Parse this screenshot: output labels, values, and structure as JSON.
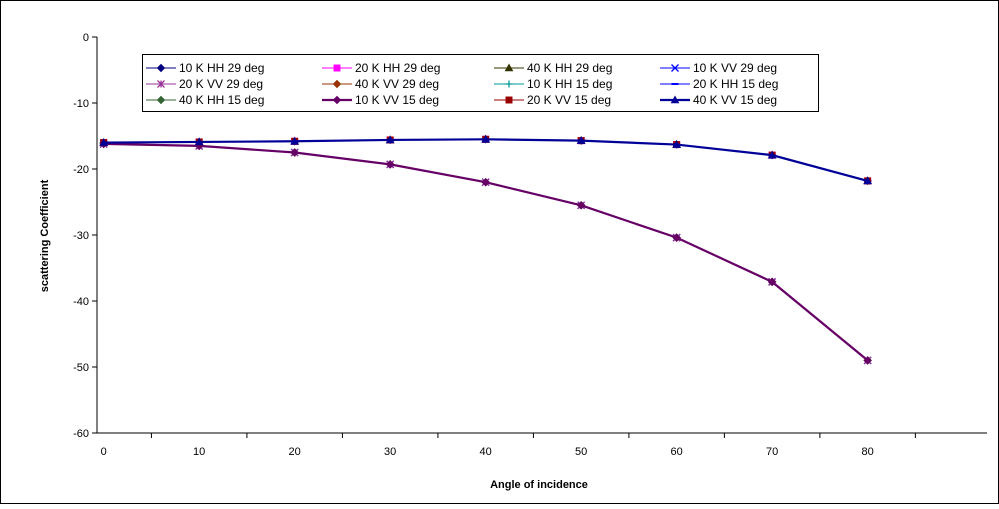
{
  "chart_data": {
    "type": "line",
    "title": "",
    "xlabel": "Angle of incidence",
    "ylabel": "scattering Coefficient",
    "x": [
      0,
      10,
      20,
      30,
      40,
      50,
      60,
      70,
      80
    ],
    "x_ticks": [
      "0",
      "10",
      "20",
      "30",
      "40",
      "50",
      "60",
      "70",
      "80"
    ],
    "y_ticks": [
      "0",
      "-10",
      "-20",
      "-30",
      "-40",
      "-50",
      "-60"
    ],
    "ylim": [
      -60,
      0
    ],
    "grid": false,
    "legend_position": "top",
    "series": [
      {
        "name": "10 K HH 29 deg",
        "color": "#000080",
        "marker": "diamond",
        "values": [
          -16.0,
          -15.9,
          -15.8,
          -15.6,
          -15.5,
          -15.7,
          -16.3,
          -17.9,
          -21.8
        ]
      },
      {
        "name": "20 K HH 29 deg",
        "color": "#ff00ff",
        "marker": "square",
        "values": [
          -16.0,
          -15.9,
          -15.8,
          -15.6,
          -15.5,
          -15.7,
          -16.3,
          -17.9,
          -21.8
        ]
      },
      {
        "name": "40 K HH 29 deg",
        "color": "#333300",
        "marker": "triangle",
        "values": [
          -16.0,
          -15.9,
          -15.8,
          -15.6,
          -15.5,
          -15.7,
          -16.3,
          -17.9,
          -21.8
        ]
      },
      {
        "name": "10 K VV 29 deg",
        "color": "#0000ff",
        "marker": "x",
        "values": [
          -16.2,
          -16.5,
          -17.5,
          -19.3,
          -22.0,
          -25.5,
          -30.4,
          -37.1,
          -49.0
        ]
      },
      {
        "name": "20 K VV 29 deg",
        "color": "#993399",
        "marker": "star",
        "values": [
          -16.2,
          -16.5,
          -17.5,
          -19.3,
          -22.0,
          -25.5,
          -30.4,
          -37.1,
          -49.0
        ]
      },
      {
        "name": "40 K VV 29 deg",
        "color": "#993300",
        "marker": "diamond",
        "values": [
          -16.2,
          -16.5,
          -17.5,
          -19.3,
          -22.0,
          -25.5,
          -30.4,
          -37.1,
          -49.0
        ]
      },
      {
        "name": "10  K HH 15 deg",
        "color": "#009999",
        "marker": "plus",
        "values": [
          -16.0,
          -15.9,
          -15.8,
          -15.6,
          -15.5,
          -15.7,
          -16.3,
          -17.9,
          -21.8
        ]
      },
      {
        "name": "20 K HH 15 deg",
        "color": "#0000ff",
        "marker": "dash",
        "values": [
          -16.0,
          -15.9,
          -15.8,
          -15.6,
          -15.5,
          -15.7,
          -16.3,
          -17.9,
          -21.8
        ]
      },
      {
        "name": "40 K HH 15 deg",
        "color": "#336633",
        "marker": "diamond",
        "values": [
          -16.2,
          -16.5,
          -17.5,
          -19.3,
          -22.0,
          -25.5,
          -30.4,
          -37.1,
          -49.0
        ]
      },
      {
        "name": "10 K VV 15 deg",
        "color": "#660066",
        "marker": "diamond",
        "values": [
          -16.2,
          -16.5,
          -17.5,
          -19.3,
          -22.0,
          -25.5,
          -30.4,
          -37.1,
          -49.0
        ]
      },
      {
        "name": "20 K VV 15 deg",
        "color": "#990000",
        "marker": "square",
        "values": [
          -16.0,
          -15.9,
          -15.8,
          -15.6,
          -15.5,
          -15.7,
          -16.3,
          -17.9,
          -21.8
        ]
      },
      {
        "name": "40 K VV 15 deg",
        "color": "#000099",
        "marker": "triangle",
        "values": [
          -16.0,
          -15.9,
          -15.8,
          -15.6,
          -15.5,
          -15.7,
          -16.3,
          -17.9,
          -21.8
        ]
      }
    ]
  }
}
